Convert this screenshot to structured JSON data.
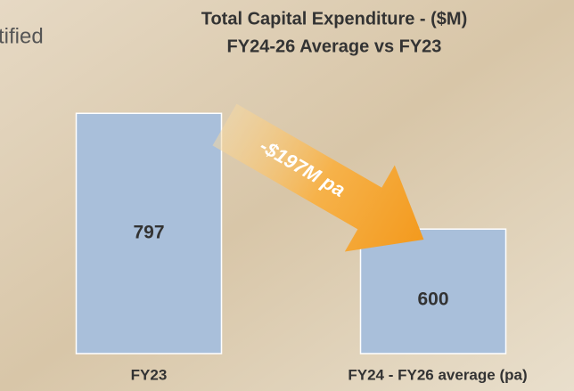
{
  "chart_data": {
    "type": "bar",
    "title": "Total Capital Expenditure - ($M)",
    "subtitle": "FY24-26 Average vs FY23",
    "side_text": "tified",
    "annotation": "-$197M pa",
    "categories": [
      "FY23",
      "FY24 - FY26 average (pa)"
    ],
    "values": [
      797,
      600
    ],
    "color": "#a9bfda",
    "ylim": [
      388,
      899
    ]
  }
}
